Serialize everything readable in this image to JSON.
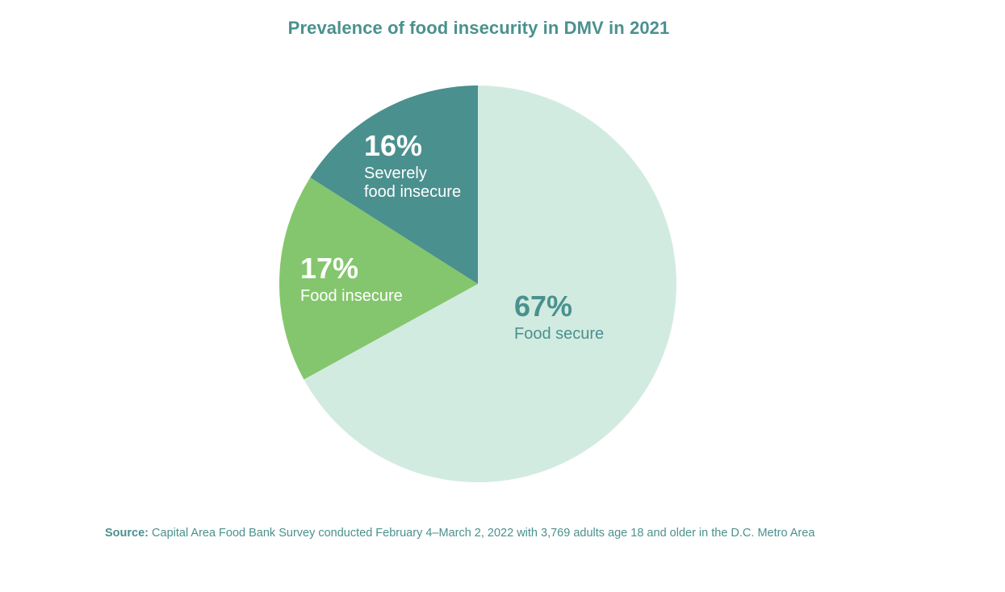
{
  "chart_data": {
    "type": "pie",
    "title": "Prevalence of food insecurity in DMV in 2021",
    "start_angle_deg": 0,
    "direction": "clockwise",
    "slices": [
      {
        "label": "Food secure",
        "value": 67,
        "value_label": "67%",
        "color": "#d2ebe1",
        "text_color": "#4a918e"
      },
      {
        "label": "Food insecure",
        "value": 17,
        "value_label": "17%",
        "color": "#84c66d",
        "text_color": "#ffffff"
      },
      {
        "label": "Severely food insecure",
        "label_lines": [
          "Severely",
          "food insecure"
        ],
        "value": 16,
        "value_label": "16%",
        "color": "#4a908e",
        "text_color": "#ffffff"
      }
    ],
    "source_label": "Source:",
    "source_text": "Capital Area Food Bank Survey conducted February 4–March 2, 2022 with 3,769 adults age 18 and older in the D.C. Metro Area"
  }
}
